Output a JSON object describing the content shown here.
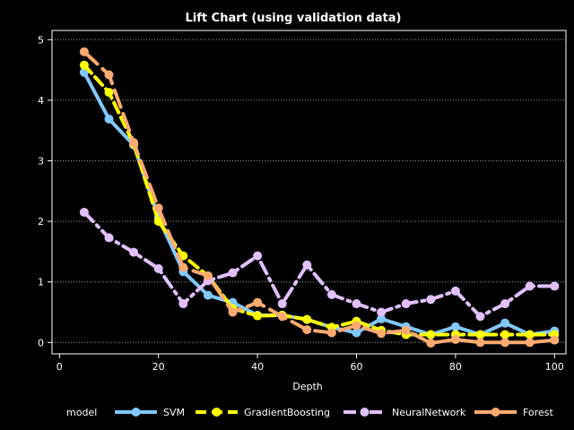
{
  "chart_data": {
    "type": "line",
    "title": "Lift Chart (using validation data)",
    "xlabel": "Depth",
    "ylabel": "",
    "xlim": [
      0,
      100
    ],
    "ylim": [
      0,
      5
    ],
    "xticks": [
      0,
      20,
      40,
      60,
      80,
      100
    ],
    "yticks": [
      0,
      1,
      2,
      3,
      4,
      5
    ],
    "grid": "horizontal dotted",
    "legend": {
      "title": "model",
      "position": "bottom"
    },
    "x": [
      5,
      10,
      15,
      20,
      25,
      30,
      35,
      40,
      45,
      50,
      55,
      60,
      65,
      70,
      75,
      80,
      85,
      90,
      95,
      100
    ],
    "series": [
      {
        "name": "SVM",
        "color": "#80c8ff",
        "dash": "solid",
        "values": [
          4.46,
          3.69,
          3.26,
          2.06,
          1.17,
          0.78,
          0.66,
          0.45,
          0.45,
          0.38,
          0.25,
          0.16,
          0.39,
          0.26,
          0.13,
          0.26,
          0.13,
          0.32,
          0.13,
          0.19
        ]
      },
      {
        "name": "GradientBoosting",
        "color": "#ffff00",
        "dash": "dashed",
        "values": [
          4.58,
          4.13,
          3.28,
          2.0,
          1.43,
          1.1,
          0.56,
          0.44,
          0.45,
          0.38,
          0.25,
          0.35,
          0.2,
          0.13,
          0.13,
          0.13,
          0.13,
          0.13,
          0.13,
          0.13
        ]
      },
      {
        "name": "NeuralNetwork",
        "color": "#e0c0ff",
        "dash": "dashdot",
        "values": [
          2.15,
          1.73,
          1.49,
          1.22,
          0.64,
          1.02,
          1.15,
          1.43,
          0.64,
          1.28,
          0.79,
          0.64,
          0.5,
          0.64,
          0.71,
          0.85,
          0.43,
          0.64,
          0.93,
          0.93
        ]
      },
      {
        "name": "Forest",
        "color": "#ffaa70",
        "dash": "longdash",
        "values": [
          4.8,
          4.42,
          3.3,
          2.22,
          1.24,
          1.1,
          0.5,
          0.66,
          0.43,
          0.21,
          0.16,
          0.28,
          0.15,
          0.2,
          -0.01,
          0.05,
          0.0,
          0.0,
          0.0,
          0.04
        ]
      }
    ]
  }
}
